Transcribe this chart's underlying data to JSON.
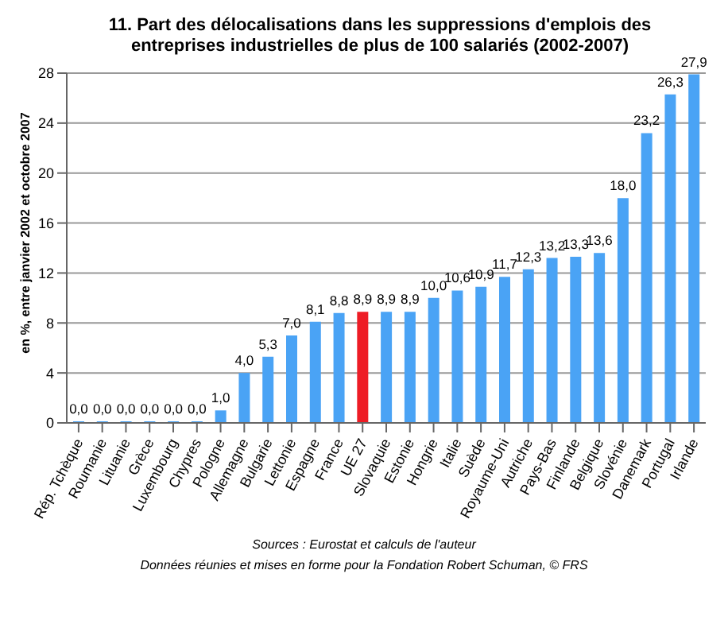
{
  "chart_data": {
    "type": "bar",
    "title": "11.  Part des délocalisations dans les suppressions d'emplois des entreprises industrielles de plus de 100 salariés (2002-2007)",
    "ylabel": "en %, entre janvier 2002 et octobre 2007",
    "categories": [
      "Rép. Tchèque",
      "Roumanie",
      "Lituanie",
      "Grèce",
      "Luxembourg",
      "Chypres",
      "Pologne",
      "Allemagne",
      "Bulgarie",
      "Lettonie",
      "Espagne",
      "France",
      "UE 27",
      "Slovaquie",
      "Estonie",
      "Hongrie",
      "Italie",
      "Suède",
      "Royaume-Uni",
      "Autriche",
      "Pays-Bas",
      "Finlande",
      "Belgique",
      "Slovénie",
      "Danemark",
      "Portugal",
      "Irlande"
    ],
    "values": [
      0,
      0,
      0,
      0,
      0,
      0,
      1.0,
      4.0,
      5.3,
      7.0,
      8.1,
      8.8,
      8.9,
      8.9,
      8.9,
      10.0,
      10.6,
      10.9,
      11.7,
      12.3,
      13.2,
      13.3,
      13.6,
      18.0,
      23.2,
      26.3,
      27.9
    ],
    "value_labels": [
      "0,0",
      "0,0",
      "0,0",
      "0,0",
      "0,0",
      "0,0",
      "1,0",
      "4,0",
      "5,3",
      "7,0",
      "8,1",
      "8,8",
      "8,9",
      "8,9",
      "8,9",
      "10,0",
      "10,6",
      "10,9",
      "11,7",
      "12,3",
      "13,2",
      "13,3",
      "13,6",
      "18,0",
      "23,2",
      "26,3",
      "27,9"
    ],
    "colors": [
      "#4aa3f5",
      "#4aa3f5",
      "#4aa3f5",
      "#4aa3f5",
      "#4aa3f5",
      "#4aa3f5",
      "#4aa3f5",
      "#4aa3f5",
      "#4aa3f5",
      "#4aa3f5",
      "#4aa3f5",
      "#4aa3f5",
      "#ee1c25",
      "#4aa3f5",
      "#4aa3f5",
      "#4aa3f5",
      "#4aa3f5",
      "#4aa3f5",
      "#4aa3f5",
      "#4aa3f5",
      "#4aa3f5",
      "#4aa3f5",
      "#4aa3f5",
      "#4aa3f5",
      "#4aa3f5",
      "#4aa3f5",
      "#4aa3f5"
    ],
    "ylim": [
      0,
      28
    ],
    "yticks": [
      0,
      4,
      8,
      12,
      16,
      20,
      24,
      28
    ],
    "grid": "y",
    "annotations": [
      "Sources : Eurostat et calculs de l'auteur",
      "Données réunies et mises en forme pour la Fondation Robert Schuman, © FRS"
    ]
  }
}
